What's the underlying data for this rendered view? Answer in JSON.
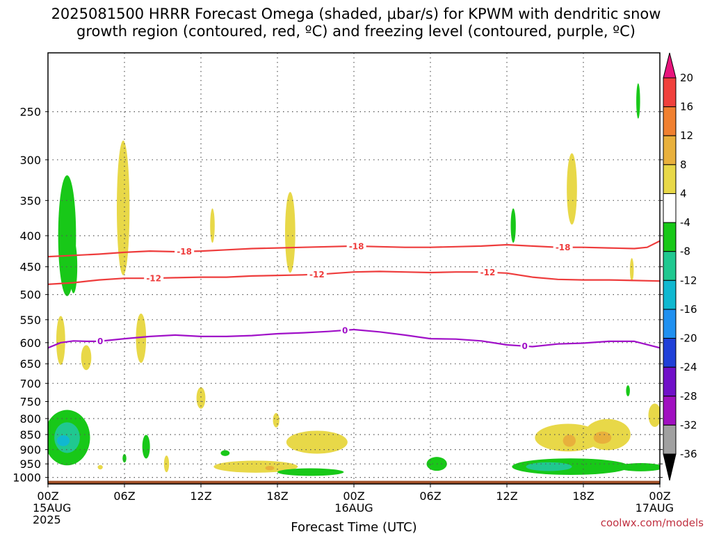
{
  "chart_data": {
    "type": "heatmap",
    "title_line1": "2025081500 HRRR Forecast Omega (shaded, μbar/s) for KPWM with dendritic snow",
    "title_line2": "growth region (contoured, red, ºC) and freezing level (contoured, purple, ºC)",
    "xlabel": "Forecast Time (UTC)",
    "credit": "coolwx.com/models",
    "x_hours": [
      0,
      6,
      12,
      18,
      24,
      30,
      36,
      42,
      48
    ],
    "x_tick_labels": [
      [
        "00Z",
        "15AUG",
        "2025"
      ],
      [
        "06Z"
      ],
      [
        "12Z"
      ],
      [
        "18Z"
      ],
      [
        "00Z",
        "16AUG"
      ],
      [
        "06Z"
      ],
      [
        "12Z"
      ],
      [
        "18Z"
      ],
      [
        "00Z",
        "17AUG"
      ]
    ],
    "y_ticks": [
      250,
      300,
      350,
      400,
      450,
      500,
      550,
      600,
      650,
      700,
      750,
      800,
      850,
      900,
      950,
      1000
    ],
    "y_range": [
      200,
      1025
    ],
    "x_range": [
      0,
      48
    ],
    "grid": true,
    "colorbar": {
      "ticks": [
        "20",
        "16",
        "12",
        "8",
        "4",
        "-4",
        "-8",
        "-12",
        "-16",
        "-20",
        "-24",
        "-28",
        "-32",
        "-36"
      ],
      "colors": [
        "#e8147c",
        "#f0403c",
        "#f08030",
        "#e8b03c",
        "#e8d848",
        "#ffffff",
        "#18c818",
        "#20c890",
        "#10b8d0",
        "#2090f0",
        "#2040d8",
        "#7010c8",
        "#a010c0",
        "#a0a0a0",
        "#000000"
      ]
    },
    "contours": [
      {
        "label": "-18",
        "color": "#ee3c3c",
        "label_x": [
          10.7,
          24.2,
          40.4
        ],
        "x": [
          0,
          2,
          4,
          6,
          8,
          10,
          12,
          14,
          16,
          18,
          20,
          22,
          24,
          26,
          28,
          30,
          32,
          34,
          36,
          38,
          40,
          42,
          44,
          46,
          47,
          48
        ],
        "p": [
          433,
          431,
          429,
          426,
          424,
          425,
          424,
          422,
          420,
          419,
          418,
          417,
          416,
          417,
          418,
          418,
          417,
          416,
          414,
          416,
          418,
          418,
          419,
          420,
          418,
          408
        ]
      },
      {
        "label": "-12",
        "color": "#ee3c3c",
        "label_x": [
          8.3,
          21.1,
          34.5
        ],
        "x": [
          0,
          2,
          4,
          6,
          8,
          10,
          12,
          14,
          16,
          18,
          20,
          22,
          24,
          26,
          28,
          30,
          32,
          34,
          36,
          38,
          40,
          42,
          44,
          46,
          48
        ],
        "p": [
          481,
          478,
          473,
          470,
          470,
          469,
          468,
          468,
          466,
          465,
          464,
          462,
          459,
          458,
          459,
          460,
          459,
          459,
          461,
          468,
          472,
          473,
          473,
          474,
          475
        ]
      },
      {
        "label": "0",
        "color": "#a010c8",
        "label_x": [
          4.1,
          23.3,
          37.4
        ],
        "x": [
          0,
          1,
          2,
          3,
          4,
          6,
          8,
          10,
          12,
          14,
          16,
          18,
          20,
          22,
          24,
          26,
          28,
          30,
          32,
          34,
          36,
          38,
          40,
          42,
          44,
          46,
          48
        ],
        "p": [
          612,
          600,
          596,
          597,
          597,
          591,
          586,
          583,
          586,
          586,
          584,
          580,
          578,
          575,
          571,
          576,
          583,
          591,
          592,
          596,
          605,
          609,
          603,
          601,
          597,
          597,
          612
        ]
      }
    ],
    "omega_regions": [
      {
        "color": "#18c818",
        "x": 1.5,
        "p": 400,
        "rx": 0.7,
        "rp": 90
      },
      {
        "color": "#18c818",
        "x": 2.0,
        "p": 450,
        "rx": 0.3,
        "rp": 45
      },
      {
        "color": "#e8d848",
        "x": 5.9,
        "p": 360,
        "rx": 0.5,
        "rp": 90
      },
      {
        "color": "#e8d848",
        "x": 12.9,
        "p": 385,
        "rx": 0.18,
        "rp": 25
      },
      {
        "color": "#e8d848",
        "x": 19.0,
        "p": 395,
        "rx": 0.4,
        "rp": 60
      },
      {
        "color": "#18c818",
        "x": 36.5,
        "p": 385,
        "rx": 0.2,
        "rp": 25
      },
      {
        "color": "#e8d848",
        "x": 41.1,
        "p": 335,
        "rx": 0.4,
        "rp": 45
      },
      {
        "color": "#18c818",
        "x": 46.3,
        "p": 240,
        "rx": 0.15,
        "rp": 16
      },
      {
        "color": "#e8d848",
        "x": 45.8,
        "p": 455,
        "rx": 0.15,
        "rp": 20
      },
      {
        "color": "#e8d848",
        "x": 1.0,
        "p": 595,
        "rx": 0.35,
        "rp": 55
      },
      {
        "color": "#e8d848",
        "x": 3.0,
        "p": 635,
        "rx": 0.4,
        "rp": 30
      },
      {
        "color": "#e8d848",
        "x": 7.3,
        "p": 590,
        "rx": 0.4,
        "rp": 55
      },
      {
        "color": "#e8d848",
        "x": 12.0,
        "p": 740,
        "rx": 0.35,
        "rp": 30
      },
      {
        "color": "#e8d848",
        "x": 17.9,
        "p": 805,
        "rx": 0.25,
        "rp": 22
      },
      {
        "color": "#e8d848",
        "x": 21.1,
        "p": 875,
        "rx": 2.4,
        "rp": 38
      },
      {
        "color": "#e8d848",
        "x": 16.3,
        "p": 960,
        "rx": 3.3,
        "rp": 22
      },
      {
        "color": "#e8b03c",
        "x": 17.4,
        "p": 965,
        "rx": 0.35,
        "rp": 8
      },
      {
        "color": "#18c818",
        "x": 1.5,
        "p": 860,
        "rx": 1.8,
        "rp": 90
      },
      {
        "color": "#20c890",
        "x": 1.5,
        "p": 860,
        "rx": 1.0,
        "rp": 50
      },
      {
        "color": "#10b8d0",
        "x": 1.2,
        "p": 870,
        "rx": 0.5,
        "rp": 18
      },
      {
        "color": "#18c818",
        "x": 7.7,
        "p": 890,
        "rx": 0.3,
        "rp": 40
      },
      {
        "color": "#18c818",
        "x": 6.0,
        "p": 930,
        "rx": 0.15,
        "rp": 15
      },
      {
        "color": "#e8d848",
        "x": 9.3,
        "p": 950,
        "rx": 0.2,
        "rp": 30
      },
      {
        "color": "#e8d848",
        "x": 4.1,
        "p": 962,
        "rx": 0.2,
        "rp": 8
      },
      {
        "color": "#18c818",
        "x": 13.9,
        "p": 912,
        "rx": 0.35,
        "rp": 10
      },
      {
        "color": "#18c818",
        "x": 20.6,
        "p": 980,
        "rx": 2.6,
        "rp": 14
      },
      {
        "color": "#18c818",
        "x": 30.5,
        "p": 950,
        "rx": 0.8,
        "rp": 25
      },
      {
        "color": "#18c818",
        "x": 41.0,
        "p": 960,
        "rx": 4.6,
        "rp": 30
      },
      {
        "color": "#18c818",
        "x": 46.5,
        "p": 962,
        "rx": 1.8,
        "rp": 15
      },
      {
        "color": "#20c890",
        "x": 39.3,
        "p": 960,
        "rx": 1.8,
        "rp": 16
      },
      {
        "color": "#e8d848",
        "x": 40.8,
        "p": 860,
        "rx": 2.6,
        "rp": 45
      },
      {
        "color": "#e8d848",
        "x": 43.9,
        "p": 850,
        "rx": 1.8,
        "rp": 50
      },
      {
        "color": "#e8b03c",
        "x": 40.9,
        "p": 870,
        "rx": 0.5,
        "rp": 20
      },
      {
        "color": "#e8b03c",
        "x": 43.5,
        "p": 860,
        "rx": 0.7,
        "rp": 20
      },
      {
        "color": "#e8d848",
        "x": 47.6,
        "p": 790,
        "rx": 0.5,
        "rp": 35
      },
      {
        "color": "#18c818",
        "x": 45.5,
        "p": 720,
        "rx": 0.15,
        "rp": 15
      }
    ],
    "terrain_color": "#a05028"
  }
}
